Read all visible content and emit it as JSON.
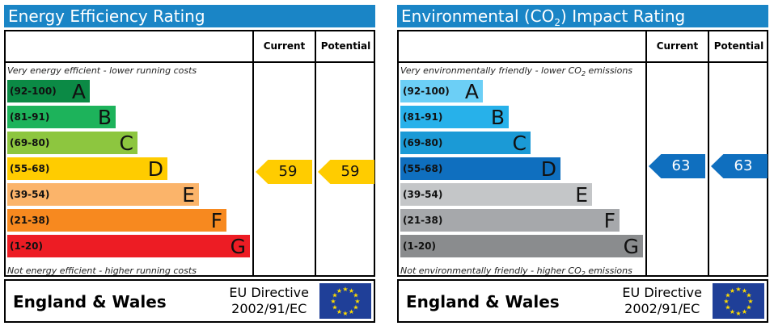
{
  "energy": {
    "title": "Energy Efficiency Rating",
    "col_current": "Current",
    "col_potential": "Potential",
    "top_note": "Very energy efficient - lower running costs",
    "bottom_note": "Not energy efficient - higher running costs",
    "bands": [
      {
        "range": "(92-100)",
        "letter": "A",
        "color": "#0b8a45"
      },
      {
        "range": "(81-91)",
        "letter": "B",
        "color": "#1db35b"
      },
      {
        "range": "(69-80)",
        "letter": "C",
        "color": "#8dc63f"
      },
      {
        "range": "(55-68)",
        "letter": "D",
        "color": "#ffcc00"
      },
      {
        "range": "(39-54)",
        "letter": "E",
        "color": "#fbb46a"
      },
      {
        "range": "(21-38)",
        "letter": "F",
        "color": "#f7891f"
      },
      {
        "range": "(1-20)",
        "letter": "G",
        "color": "#ed1c24"
      }
    ],
    "current": {
      "value": "59",
      "color": "#ffcc00"
    },
    "potential": {
      "value": "59",
      "color": "#ffcc00"
    },
    "footer_region": "England & Wales",
    "directive_line1": "EU Directive",
    "directive_line2": "2002/91/EC"
  },
  "environment": {
    "title_prefix": "Environmental (CO",
    "title_sub": "2",
    "title_suffix": ") Impact Rating",
    "col_current": "Current",
    "col_potential": "Potential",
    "top_note_prefix": "Very environmentally friendly - lower CO",
    "top_note_sub": "2",
    "top_note_suffix": " emissions",
    "bottom_note_prefix": "Not environmentally friendly - higher CO",
    "bottom_note_sub": "2",
    "bottom_note_suffix": " emissions",
    "bands": [
      {
        "range": "(92-100)",
        "letter": "A",
        "color": "#6ccff6"
      },
      {
        "range": "(81-91)",
        "letter": "B",
        "color": "#27b1ea"
      },
      {
        "range": "(69-80)",
        "letter": "C",
        "color": "#1b9ad6"
      },
      {
        "range": "(55-68)",
        "letter": "D",
        "color": "#0f6fbf"
      },
      {
        "range": "(39-54)",
        "letter": "E",
        "color": "#c4c6c8"
      },
      {
        "range": "(21-38)",
        "letter": "F",
        "color": "#a6a8ab"
      },
      {
        "range": "(1-20)",
        "letter": "G",
        "color": "#8a8c8e"
      }
    ],
    "current": {
      "value": "63",
      "color": "#0f6fbf"
    },
    "potential": {
      "value": "63",
      "color": "#0f6fbf"
    },
    "footer_region": "England & Wales",
    "directive_line1": "EU Directive",
    "directive_line2": "2002/91/EC"
  }
}
